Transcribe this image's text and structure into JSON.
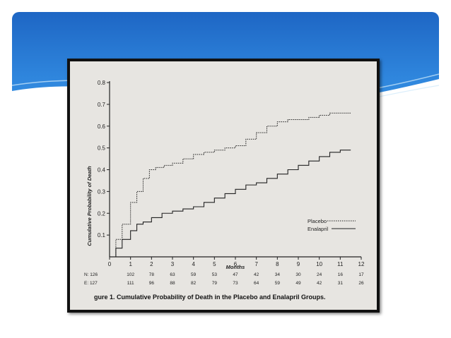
{
  "chart_data": {
    "type": "line",
    "title": "",
    "caption": "gure 1. Cumulative Probability of Death in the Placebo and Enalapril Groups.",
    "xlabel": "Months",
    "ylabel": "Cumulative Probability of Death",
    "xlim": [
      0,
      12
    ],
    "ylim": [
      0,
      0.8
    ],
    "x_ticks": [
      "0",
      "1",
      "2",
      "3",
      "4",
      "5",
      "6",
      "7",
      "8",
      "9",
      "10",
      "11",
      "12"
    ],
    "y_ticks": [
      "0.1",
      "0.2",
      "0.3",
      "0.4",
      "0.5",
      "0.6",
      "0.7",
      "0.8"
    ],
    "grid": false,
    "legend_position": "bottom-right",
    "series": [
      {
        "name": "Placebo",
        "style": "dotted",
        "x": [
          0,
          0.3,
          0.6,
          1.0,
          1.3,
          1.6,
          1.9,
          2.2,
          2.6,
          3.0,
          3.5,
          4.0,
          4.5,
          5.0,
          5.5,
          6.0,
          6.5,
          7.0,
          7.5,
          8.0,
          8.5,
          9.0,
          9.5,
          10.0,
          10.5,
          11.0,
          11.5
        ],
        "values": [
          0,
          0.08,
          0.15,
          0.25,
          0.3,
          0.36,
          0.4,
          0.41,
          0.42,
          0.43,
          0.45,
          0.47,
          0.48,
          0.49,
          0.5,
          0.51,
          0.54,
          0.57,
          0.6,
          0.62,
          0.63,
          0.63,
          0.64,
          0.65,
          0.66,
          0.66,
          0.66
        ]
      },
      {
        "name": "Enalapril",
        "style": "solid",
        "x": [
          0,
          0.3,
          0.6,
          1.0,
          1.3,
          1.6,
          2.0,
          2.5,
          3.0,
          3.5,
          4.0,
          4.5,
          5.0,
          5.5,
          6.0,
          6.5,
          7.0,
          7.5,
          8.0,
          8.5,
          9.0,
          9.5,
          10.0,
          10.5,
          11.0,
          11.5
        ],
        "values": [
          0,
          0.04,
          0.08,
          0.12,
          0.15,
          0.16,
          0.18,
          0.2,
          0.21,
          0.22,
          0.23,
          0.25,
          0.27,
          0.29,
          0.31,
          0.33,
          0.34,
          0.36,
          0.38,
          0.4,
          0.42,
          0.44,
          0.46,
          0.48,
          0.49,
          0.49
        ]
      }
    ],
    "at_risk": [
      {
        "label": "N: 126",
        "values": [
          "102",
          "78",
          "63",
          "59",
          "53",
          "47",
          "42",
          "34",
          "30",
          "24",
          "16",
          "17"
        ]
      },
      {
        "label": "E: 127",
        "values": [
          "111",
          "96",
          "88",
          "82",
          "79",
          "73",
          "64",
          "59",
          "49",
          "42",
          "31",
          "26"
        ]
      }
    ]
  },
  "colors": {
    "header_top": "#1e66c4",
    "header_bottom": "#3a97e6",
    "ink": "#222222",
    "paper": "#e7e5e1"
  }
}
